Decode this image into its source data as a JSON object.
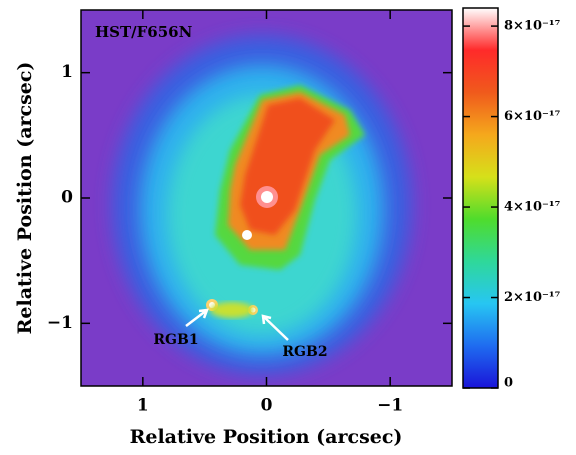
{
  "chart_data": {
    "type": "image",
    "annotation": "HST/F656N",
    "sources": [
      {
        "label": "RGB1"
      },
      {
        "label": "RGB2"
      }
    ],
    "x_label": "Relative Position (arcsec)",
    "y_label": "Relative Position (arcsec)",
    "xlim": [
      1.5,
      -1.5
    ],
    "ylim": [
      -1.5,
      1.5
    ],
    "xticks": [
      1,
      0,
      {
        "value": -1,
        "label": "−1"
      }
    ],
    "yticks": [
      {
        "value": -1,
        "label": "−1"
      },
      0,
      1
    ],
    "clim": [
      0,
      8.4e-17
    ],
    "cticks": [
      0,
      {
        "value": 2e-17,
        "label": "2×10⁻¹⁷"
      },
      {
        "value": 4e-17,
        "label": "4×10⁻¹⁷"
      },
      {
        "value": 6e-17,
        "label": "6×10⁻¹⁷"
      },
      {
        "value": 8e-17,
        "label": "8×10⁻¹⁷"
      }
    ],
    "colormap": [
      "#1a14d8",
      "#1f6cf0",
      "#27c6f2",
      "#2fd89a",
      "#4fdc2c",
      "#d6e01a",
      "#f5a81c",
      "#f05a1c",
      "#ff2a2a",
      "#ffffff"
    ]
  }
}
